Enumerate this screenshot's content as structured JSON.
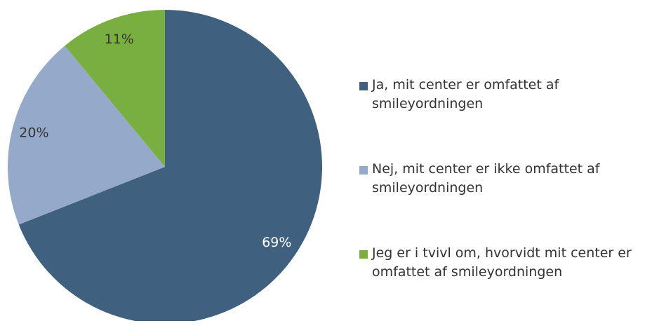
{
  "chart_data": {
    "type": "pie",
    "categories": [
      "Ja, mit center er omfattet af smileyordningen",
      "Nej, mit center er ikke omfattet af smileyordningen",
      "Jeg er i tvivl om, hvorvidt mit center er omfattet af smileyordningen"
    ],
    "values": [
      69,
      20,
      11
    ],
    "value_labels": [
      "69%",
      "20%",
      "11%"
    ],
    "colors": [
      "#3f617f",
      "#95aacb",
      "#79ae41"
    ],
    "legend": "right"
  }
}
